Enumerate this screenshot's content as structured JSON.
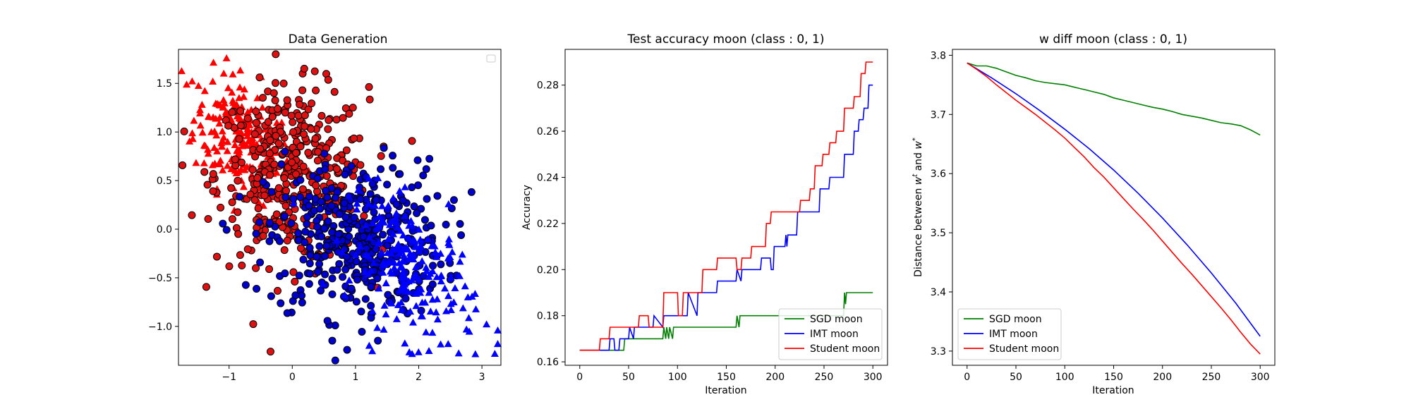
{
  "chart_data": [
    {
      "type": "scatter",
      "title": "Data Generation",
      "xlabel": "",
      "ylabel": "",
      "xlim": [
        -1.8,
        3.3
      ],
      "ylim": [
        -1.4,
        1.85
      ],
      "xticks": [
        -1,
        0,
        1,
        2,
        3
      ],
      "yticks": [
        -1.0,
        -0.5,
        0.0,
        0.5,
        1.0,
        1.5
      ],
      "xtick_labels": [
        "−1",
        "0",
        "1",
        "2",
        "3"
      ],
      "ytick_labels": [
        "−1.0",
        "−0.5",
        "0.0",
        "0.5",
        "1.0",
        "1.5"
      ],
      "legend": "top-right (empty)",
      "series": [
        {
          "marker": "triangle",
          "color": "#ff0000",
          "edge": "none",
          "center": [
            -0.8,
            0.95
          ],
          "spread": [
            0.38,
            0.3
          ],
          "count": 230
        },
        {
          "marker": "circle",
          "color": "#dd1111",
          "edge": "#000000",
          "center": [
            0.0,
            0.55
          ],
          "spread": [
            0.6,
            0.45
          ],
          "count": 380
        },
        {
          "marker": "circle",
          "color": "#0000cc",
          "edge": "#000000",
          "center": [
            1.0,
            -0.1
          ],
          "spread": [
            0.7,
            0.4
          ],
          "count": 420
        },
        {
          "marker": "triangle",
          "color": "#0000ff",
          "edge": "none",
          "center": [
            1.9,
            -0.45
          ],
          "spread": [
            0.5,
            0.35
          ],
          "count": 200
        }
      ]
    },
    {
      "type": "line",
      "title": "Test accuracy moon (class : 0, 1)",
      "xlabel": "Iteration",
      "ylabel": "Accuracy",
      "xlim": [
        -15,
        315
      ],
      "ylim": [
        0.1585,
        0.2955
      ],
      "xticks": [
        0,
        50,
        100,
        150,
        200,
        250,
        300
      ],
      "yticks": [
        0.16,
        0.18,
        0.2,
        0.22,
        0.24,
        0.26,
        0.28
      ],
      "xtick_labels": [
        "0",
        "50",
        "100",
        "150",
        "200",
        "250",
        "300"
      ],
      "ytick_labels": [
        "0.16",
        "0.18",
        "0.20",
        "0.22",
        "0.24",
        "0.26",
        "0.28"
      ],
      "legend": "bottom-right",
      "series": [
        {
          "name": "SGD moon",
          "color": "#008000",
          "x": [
            0,
            45,
            46,
            55,
            56,
            85,
            86,
            88,
            89,
            91,
            92,
            95,
            96,
            100,
            101,
            160,
            161,
            163,
            164,
            195,
            196,
            270,
            271,
            272,
            273,
            300
          ],
          "y": [
            0.165,
            0.165,
            0.17,
            0.17,
            0.17,
            0.17,
            0.175,
            0.17,
            0.175,
            0.17,
            0.175,
            0.17,
            0.175,
            0.175,
            0.175,
            0.175,
            0.18,
            0.175,
            0.18,
            0.18,
            0.18,
            0.18,
            0.19,
            0.185,
            0.19,
            0.19
          ]
        },
        {
          "name": "IMT moon",
          "color": "#0000ff",
          "x": [
            0,
            30,
            31,
            35,
            36,
            40,
            41,
            50,
            51,
            55,
            56,
            75,
            76,
            85,
            86,
            110,
            111,
            120,
            121,
            140,
            141,
            160,
            161,
            165,
            166,
            185,
            186,
            195,
            196,
            198,
            199,
            210,
            211,
            212,
            213,
            222,
            223,
            245,
            246,
            255,
            256,
            270,
            271,
            280,
            281,
            285,
            286,
            290,
            291,
            295,
            296,
            300
          ],
          "y": [
            0.165,
            0.165,
            0.17,
            0.17,
            0.165,
            0.165,
            0.17,
            0.17,
            0.175,
            0.17,
            0.175,
            0.175,
            0.18,
            0.175,
            0.18,
            0.18,
            0.19,
            0.18,
            0.19,
            0.19,
            0.195,
            0.195,
            0.2,
            0.195,
            0.2,
            0.2,
            0.205,
            0.205,
            0.2,
            0.2,
            0.21,
            0.21,
            0.215,
            0.21,
            0.215,
            0.215,
            0.225,
            0.225,
            0.235,
            0.235,
            0.24,
            0.24,
            0.25,
            0.25,
            0.26,
            0.26,
            0.265,
            0.265,
            0.27,
            0.27,
            0.28,
            0.28
          ]
        },
        {
          "name": "Student moon",
          "color": "#ff0000",
          "x": [
            0,
            20,
            21,
            30,
            31,
            60,
            61,
            70,
            71,
            85,
            86,
            100,
            101,
            105,
            106,
            125,
            126,
            140,
            141,
            160,
            161,
            165,
            166,
            175,
            176,
            190,
            191,
            195,
            196,
            200,
            201,
            225,
            226,
            235,
            236,
            240,
            241,
            248,
            249,
            255,
            256,
            262,
            263,
            270,
            271,
            280,
            281,
            287,
            288,
            292,
            293,
            300
          ],
          "y": [
            0.165,
            0.165,
            0.17,
            0.17,
            0.175,
            0.175,
            0.18,
            0.18,
            0.175,
            0.175,
            0.19,
            0.19,
            0.18,
            0.18,
            0.19,
            0.19,
            0.2,
            0.2,
            0.205,
            0.205,
            0.2,
            0.2,
            0.205,
            0.205,
            0.21,
            0.21,
            0.22,
            0.22,
            0.225,
            0.225,
            0.225,
            0.225,
            0.23,
            0.23,
            0.235,
            0.235,
            0.245,
            0.245,
            0.25,
            0.25,
            0.255,
            0.255,
            0.26,
            0.26,
            0.27,
            0.27,
            0.275,
            0.275,
            0.285,
            0.285,
            0.29,
            0.29
          ]
        }
      ]
    },
    {
      "type": "line",
      "title": "w diff moon (class : 0, 1)",
      "xlabel": "Iteration",
      "ylabel": "Distance between w^t and w^*",
      "ylabel_parts": {
        "prefix": "Distance between ",
        "w1": "w",
        "sup1": "t",
        "mid": " and ",
        "w2": "w",
        "sup2": "*"
      },
      "xlim": [
        -15,
        315
      ],
      "ylim": [
        3.276,
        3.81
      ],
      "xticks": [
        0,
        50,
        100,
        150,
        200,
        250,
        300
      ],
      "yticks": [
        3.3,
        3.4,
        3.5,
        3.6,
        3.7,
        3.8
      ],
      "xtick_labels": [
        "0",
        "50",
        "100",
        "150",
        "200",
        "250",
        "300"
      ],
      "ytick_labels": [
        "3.3",
        "3.4",
        "3.5",
        "3.6",
        "3.7",
        "3.8"
      ],
      "legend": "bottom-left",
      "series": [
        {
          "name": "SGD moon",
          "color": "#008000",
          "x": [
            0,
            10,
            20,
            30,
            40,
            50,
            60,
            70,
            80,
            90,
            100,
            110,
            120,
            130,
            140,
            150,
            160,
            170,
            180,
            190,
            200,
            210,
            220,
            230,
            240,
            250,
            260,
            270,
            280,
            290,
            300
          ],
          "y": [
            3.787,
            3.782,
            3.782,
            3.778,
            3.772,
            3.766,
            3.762,
            3.757,
            3.754,
            3.752,
            3.75,
            3.746,
            3.742,
            3.738,
            3.734,
            3.728,
            3.724,
            3.72,
            3.716,
            3.712,
            3.709,
            3.705,
            3.7,
            3.697,
            3.694,
            3.69,
            3.686,
            3.684,
            3.681,
            3.674,
            3.665
          ]
        },
        {
          "name": "IMT moon",
          "color": "#0000ff",
          "x": [
            0,
            25,
            50,
            75,
            100,
            125,
            150,
            175,
            200,
            225,
            250,
            275,
            300
          ],
          "y": [
            3.787,
            3.762,
            3.735,
            3.706,
            3.675,
            3.642,
            3.606,
            3.567,
            3.525,
            3.48,
            3.432,
            3.381,
            3.325
          ]
        },
        {
          "name": "Student moon",
          "color": "#ff0000",
          "x": [
            0,
            10,
            20,
            30,
            40,
            50,
            60,
            70,
            80,
            90,
            100,
            110,
            120,
            130,
            140,
            150,
            160,
            170,
            180,
            190,
            200,
            210,
            220,
            230,
            240,
            250,
            260,
            270,
            280,
            290,
            300
          ],
          "y": [
            3.787,
            3.776,
            3.764,
            3.75,
            3.737,
            3.724,
            3.712,
            3.7,
            3.687,
            3.674,
            3.66,
            3.644,
            3.628,
            3.61,
            3.594,
            3.576,
            3.558,
            3.54,
            3.523,
            3.505,
            3.486,
            3.467,
            3.448,
            3.43,
            3.411,
            3.392,
            3.373,
            3.353,
            3.332,
            3.312,
            3.295
          ]
        }
      ]
    }
  ]
}
